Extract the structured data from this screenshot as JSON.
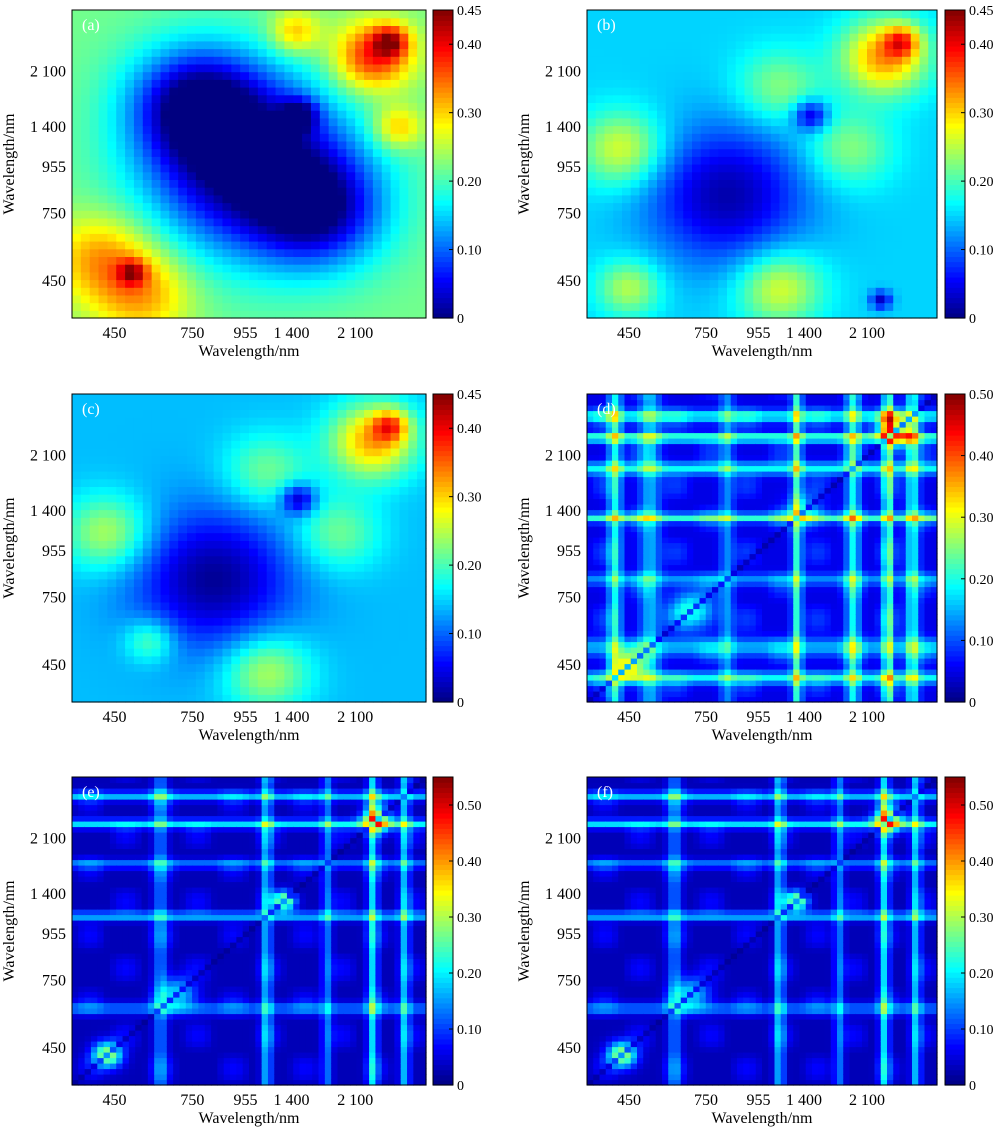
{
  "figure": {
    "colormap": "jet",
    "axis_color": "#000000"
  },
  "chart_data": [
    {
      "type": "heatmap",
      "panel_label": "(a)",
      "xlabel": "Wavelength/nm",
      "ylabel": "Wavelength/nm",
      "x_tick_labels": [
        "450",
        "750",
        "955",
        "1 400",
        "2 100"
      ],
      "y_tick_labels": [
        "450",
        "750",
        "955",
        "1 400",
        "2 100"
      ],
      "colorbar": {
        "min": 0,
        "max": 0.45,
        "tick_labels": [
          "0",
          "0.10",
          "0.20",
          "0.30",
          "0.40",
          "0.45"
        ]
      },
      "grid_size": 40,
      "pattern": "smooth",
      "base_value": 0.22,
      "blobs": [
        {
          "x": 0.08,
          "y": 0.2,
          "amp": 0.1,
          "r": 0.14
        },
        {
          "x": 0.2,
          "y": 0.08,
          "amp": 0.1,
          "r": 0.14
        },
        {
          "x": 0.17,
          "y": 0.15,
          "amp": 0.12,
          "r": 0.04
        },
        {
          "x": 0.5,
          "y": 0.5,
          "amp": -0.24,
          "r": 0.28
        },
        {
          "x": 0.35,
          "y": 0.7,
          "amp": -0.18,
          "r": 0.18
        },
        {
          "x": 0.7,
          "y": 0.35,
          "amp": -0.16,
          "r": 0.18
        },
        {
          "x": 0.85,
          "y": 0.85,
          "amp": 0.17,
          "r": 0.11
        },
        {
          "x": 0.9,
          "y": 0.9,
          "amp": 0.14,
          "r": 0.05
        },
        {
          "x": 0.63,
          "y": 0.93,
          "amp": 0.1,
          "r": 0.07
        },
        {
          "x": 0.92,
          "y": 0.62,
          "amp": 0.1,
          "r": 0.07
        },
        {
          "x": 0.64,
          "y": 0.66,
          "amp": -0.14,
          "r": 0.05
        }
      ]
    },
    {
      "type": "heatmap",
      "panel_label": "(b)",
      "xlabel": "Wavelength/nm",
      "ylabel": "Wavelength/nm",
      "x_tick_labels": [
        "450",
        "750",
        "955",
        "1 400",
        "2 100"
      ],
      "y_tick_labels": [
        "450",
        "750",
        "955",
        "1 400",
        "2 100"
      ],
      "colorbar": {
        "min": 0,
        "max": 0.45,
        "tick_labels": [
          "0",
          "0.10",
          "0.20",
          "0.30",
          "0.40",
          "0.45"
        ]
      },
      "grid_size": 40,
      "pattern": "smooth",
      "base_value": 0.15,
      "blobs": [
        {
          "x": 0.1,
          "y": 0.55,
          "amp": 0.12,
          "r": 0.12
        },
        {
          "x": 0.55,
          "y": 0.1,
          "amp": 0.12,
          "r": 0.12
        },
        {
          "x": 0.12,
          "y": 0.1,
          "amp": 0.1,
          "r": 0.09
        },
        {
          "x": 0.4,
          "y": 0.4,
          "amp": -0.13,
          "r": 0.22
        },
        {
          "x": 0.85,
          "y": 0.85,
          "amp": 0.18,
          "r": 0.12
        },
        {
          "x": 0.9,
          "y": 0.9,
          "amp": 0.13,
          "r": 0.05
        },
        {
          "x": 0.75,
          "y": 0.55,
          "amp": 0.08,
          "r": 0.12
        },
        {
          "x": 0.55,
          "y": 0.75,
          "amp": 0.08,
          "r": 0.12
        },
        {
          "x": 0.84,
          "y": 0.06,
          "amp": -0.12,
          "r": 0.03
        },
        {
          "x": 0.64,
          "y": 0.66,
          "amp": -0.13,
          "r": 0.05
        }
      ]
    },
    {
      "type": "heatmap",
      "panel_label": "(c)",
      "xlabel": "Wavelength/nm",
      "ylabel": "Wavelength/nm",
      "x_tick_labels": [
        "450",
        "750",
        "955",
        "1 400",
        "2 100"
      ],
      "y_tick_labels": [
        "450",
        "750",
        "955",
        "1 400",
        "2 100"
      ],
      "colorbar": {
        "min": 0,
        "max": 0.45,
        "tick_labels": [
          "0",
          "0.10",
          "0.20",
          "0.30",
          "0.40",
          "0.45"
        ]
      },
      "grid_size": 40,
      "pattern": "smooth",
      "base_value": 0.14,
      "blobs": [
        {
          "x": 0.1,
          "y": 0.55,
          "amp": 0.11,
          "r": 0.12
        },
        {
          "x": 0.55,
          "y": 0.1,
          "amp": 0.11,
          "r": 0.12
        },
        {
          "x": 0.22,
          "y": 0.2,
          "amp": 0.08,
          "r": 0.07
        },
        {
          "x": 0.4,
          "y": 0.4,
          "amp": -0.13,
          "r": 0.22
        },
        {
          "x": 0.85,
          "y": 0.85,
          "amp": 0.18,
          "r": 0.12
        },
        {
          "x": 0.9,
          "y": 0.9,
          "amp": 0.13,
          "r": 0.05
        },
        {
          "x": 0.75,
          "y": 0.55,
          "amp": 0.08,
          "r": 0.12
        },
        {
          "x": 0.55,
          "y": 0.75,
          "amp": 0.08,
          "r": 0.12
        },
        {
          "x": 0.64,
          "y": 0.66,
          "amp": -0.13,
          "r": 0.05
        }
      ]
    },
    {
      "type": "heatmap",
      "panel_label": "(d)",
      "xlabel": "Wavelength/nm",
      "ylabel": "Wavelength/nm",
      "x_tick_labels": [
        "450",
        "750",
        "955",
        "1 400",
        "2 100"
      ],
      "y_tick_labels": [
        "450",
        "750",
        "955",
        "1 400",
        "2 100"
      ],
      "colorbar": {
        "min": 0,
        "max": 0.5,
        "tick_labels": [
          "0",
          "0.10",
          "0.20",
          "0.30",
          "0.40",
          "0.50"
        ]
      },
      "grid_size": 56,
      "pattern": "banded",
      "base_value": 0.05,
      "bands": [
        {
          "c": 0.08,
          "w": 0.02,
          "amp": 0.14
        },
        {
          "c": 0.18,
          "w": 0.03,
          "amp": 0.1
        },
        {
          "c": 0.4,
          "w": 0.02,
          "amp": 0.08
        },
        {
          "c": 0.6,
          "w": 0.015,
          "amp": 0.16
        },
        {
          "c": 0.76,
          "w": 0.02,
          "amp": 0.14
        },
        {
          "c": 0.86,
          "w": 0.015,
          "amp": 0.18
        },
        {
          "c": 0.93,
          "w": 0.02,
          "amp": 0.14
        }
      ],
      "blobs": [
        {
          "x": 0.12,
          "y": 0.12,
          "amp": 0.28,
          "r": 0.04
        },
        {
          "x": 0.3,
          "y": 0.3,
          "amp": 0.16,
          "r": 0.06
        },
        {
          "x": 0.88,
          "y": 0.88,
          "amp": 0.25,
          "r": 0.05
        },
        {
          "x": 0.62,
          "y": 0.62,
          "amp": 0.12,
          "r": 0.05
        }
      ],
      "diagonal_dark": true
    },
    {
      "type": "heatmap",
      "panel_label": "(e)",
      "xlabel": "Wavelength/nm",
      "ylabel": "Wavelength/nm",
      "x_tick_labels": [
        "450",
        "750",
        "955",
        "1 400",
        "2 100"
      ],
      "y_tick_labels": [
        "450",
        "750",
        "955",
        "1 400",
        "2 100"
      ],
      "colorbar": {
        "min": 0,
        "max": 0.55,
        "tick_labels": [
          "0",
          "0.10",
          "0.20",
          "0.30",
          "0.40",
          "0.50"
        ]
      },
      "grid_size": 56,
      "pattern": "banded",
      "base_value": 0.03,
      "bands": [
        {
          "c": 0.25,
          "w": 0.02,
          "amp": 0.1
        },
        {
          "c": 0.55,
          "w": 0.015,
          "amp": 0.14
        },
        {
          "c": 0.72,
          "w": 0.015,
          "amp": 0.1
        },
        {
          "c": 0.85,
          "w": 0.015,
          "amp": 0.16
        },
        {
          "c": 0.94,
          "w": 0.015,
          "amp": 0.14
        }
      ],
      "blobs": [
        {
          "x": 0.1,
          "y": 0.1,
          "amp": 0.3,
          "r": 0.04
        },
        {
          "x": 0.3,
          "y": 0.3,
          "amp": 0.16,
          "r": 0.05
        },
        {
          "x": 0.6,
          "y": 0.6,
          "amp": 0.3,
          "r": 0.03
        },
        {
          "x": 0.86,
          "y": 0.86,
          "amp": 0.3,
          "r": 0.04
        }
      ],
      "diagonal_dark": true
    },
    {
      "type": "heatmap",
      "panel_label": "(f)",
      "xlabel": "Wavelength/nm",
      "ylabel": "Wavelength/nm",
      "x_tick_labels": [
        "450",
        "750",
        "955",
        "1 400",
        "2 100"
      ],
      "y_tick_labels": [
        "450",
        "750",
        "955",
        "1 400",
        "2 100"
      ],
      "colorbar": {
        "min": 0,
        "max": 0.55,
        "tick_labels": [
          "0",
          "0.10",
          "0.20",
          "0.30",
          "0.40",
          "0.50"
        ]
      },
      "grid_size": 56,
      "pattern": "banded",
      "base_value": 0.03,
      "bands": [
        {
          "c": 0.25,
          "w": 0.02,
          "amp": 0.1
        },
        {
          "c": 0.55,
          "w": 0.015,
          "amp": 0.14
        },
        {
          "c": 0.72,
          "w": 0.015,
          "amp": 0.1
        },
        {
          "c": 0.85,
          "w": 0.015,
          "amp": 0.16
        },
        {
          "c": 0.94,
          "w": 0.015,
          "amp": 0.14
        }
      ],
      "blobs": [
        {
          "x": 0.1,
          "y": 0.1,
          "amp": 0.3,
          "r": 0.04
        },
        {
          "x": 0.3,
          "y": 0.3,
          "amp": 0.16,
          "r": 0.05
        },
        {
          "x": 0.6,
          "y": 0.6,
          "amp": 0.3,
          "r": 0.03
        },
        {
          "x": 0.86,
          "y": 0.86,
          "amp": 0.3,
          "r": 0.04
        }
      ],
      "diagonal_dark": true
    }
  ]
}
